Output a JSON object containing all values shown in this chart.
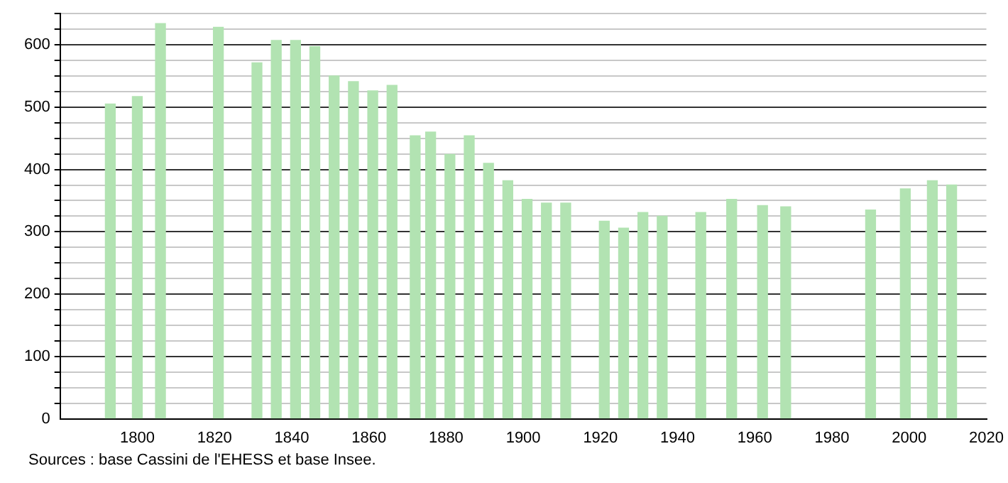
{
  "chart_data": {
    "type": "bar",
    "x": [
      1793,
      1800,
      1806,
      1821,
      1831,
      1836,
      1841,
      1846,
      1851,
      1856,
      1861,
      1866,
      1872,
      1876,
      1881,
      1886,
      1891,
      1896,
      1901,
      1906,
      1911,
      1921,
      1926,
      1931,
      1936,
      1946,
      1954,
      1962,
      1968,
      1990,
      1999,
      2006,
      2011
    ],
    "values": [
      505,
      517,
      634,
      628,
      571,
      607,
      607,
      597,
      550,
      541,
      526,
      535,
      454,
      460,
      424,
      454,
      410,
      382,
      352,
      346,
      346,
      317,
      306,
      331,
      325,
      331,
      352,
      342,
      340,
      335,
      369,
      382,
      375
    ],
    "color": "#b2e3b2",
    "xlim": [
      1780,
      2020
    ],
    "xticks": [
      1800,
      1820,
      1840,
      1860,
      1880,
      1900,
      1920,
      1940,
      1960,
      1980,
      2000,
      2020
    ],
    "ylim": [
      0,
      650
    ],
    "yticks": [
      0,
      {
        "value": 25,
        "label": null
      },
      {
        "value": 50,
        "label": null
      },
      {
        "value": 75,
        "label": null
      },
      100,
      {
        "value": 125,
        "label": null
      },
      {
        "value": 150,
        "label": null
      },
      {
        "value": 175,
        "label": null
      },
      200,
      {
        "value": 225,
        "label": null
      },
      {
        "value": 250,
        "label": null
      },
      {
        "value": 275,
        "label": null
      },
      300,
      {
        "value": 325,
        "label": null
      },
      {
        "value": 350,
        "label": null
      },
      {
        "value": 375,
        "label": null
      },
      400,
      {
        "value": 425,
        "label": null
      },
      {
        "value": 450,
        "label": null
      },
      {
        "value": 475,
        "label": null
      },
      500,
      {
        "value": 525,
        "label": null
      },
      {
        "value": 550,
        "label": null
      },
      {
        "value": 575,
        "label": null
      },
      600,
      {
        "value": 625,
        "label": null
      },
      {
        "value": 650,
        "label": null
      }
    ],
    "grid": "y",
    "annotations": [
      "Sources : base Cassini de l'EHESS et base Insee."
    ]
  }
}
